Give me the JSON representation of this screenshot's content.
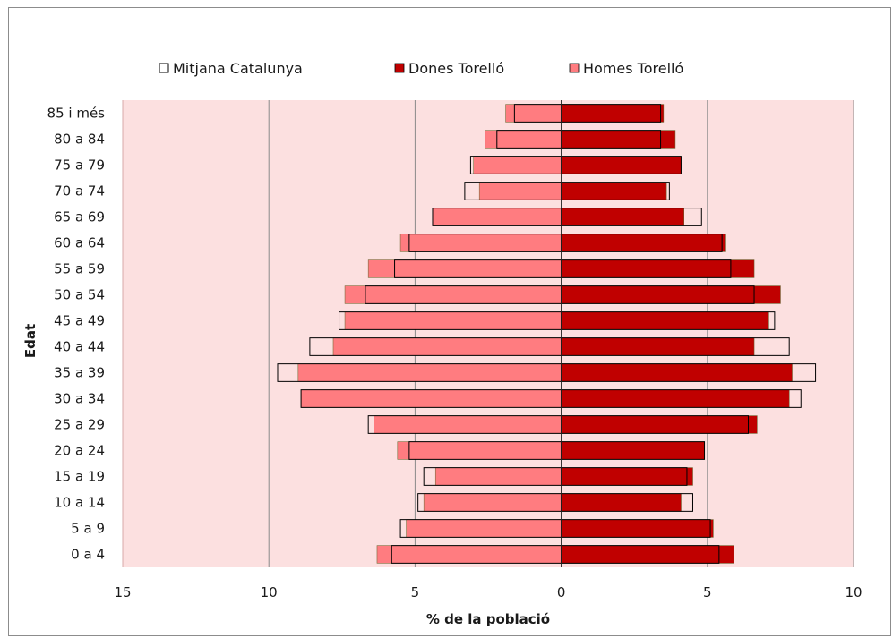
{
  "chart_data": {
    "type": "bar",
    "orientation": "horizontal",
    "xlabel": "% de la població",
    "ylabel": "Edat",
    "xlim": [
      -15,
      10
    ],
    "x_ticks": [
      "15",
      "10",
      "5",
      "0",
      "5",
      "10"
    ],
    "legend_position": "top",
    "legend": [
      {
        "name": "Mitjana Catalunya",
        "style": "outline"
      },
      {
        "name": "Dones Torelló",
        "color": "#c00000"
      },
      {
        "name": "Homes Torelló",
        "color": "#ff7c80"
      }
    ],
    "categories": [
      "0 a 4",
      "5 a 9",
      "10 a 14",
      "15 a 19",
      "20 a 24",
      "25 a 29",
      "30 a 34",
      "35 a 39",
      "40 a 44",
      "45 a 49",
      "50 a 54",
      "55 a 59",
      "60 a 64",
      "65 a 69",
      "70 a 74",
      "75 a 79",
      "80 a 84",
      "85 i més"
    ],
    "series": [
      {
        "name": "Homes Torelló",
        "side": "left",
        "values": [
          6.3,
          5.3,
          4.7,
          4.3,
          5.6,
          6.4,
          8.9,
          9.0,
          7.8,
          7.4,
          7.4,
          6.6,
          5.5,
          4.4,
          2.8,
          3.0,
          2.6,
          1.9
        ]
      },
      {
        "name": "Dones Torelló",
        "side": "right",
        "values": [
          5.9,
          5.2,
          4.1,
          4.5,
          4.9,
          6.7,
          7.8,
          7.9,
          6.6,
          7.1,
          7.5,
          6.6,
          5.6,
          4.2,
          3.6,
          4.1,
          3.9,
          3.5
        ]
      },
      {
        "name": "Mitjana Catalunya",
        "side": "both",
        "male": [
          5.8,
          5.5,
          4.9,
          4.7,
          5.2,
          6.6,
          8.9,
          9.7,
          8.6,
          7.6,
          6.7,
          5.7,
          5.2,
          4.4,
          3.3,
          3.1,
          2.2,
          1.6
        ],
        "female": [
          5.4,
          5.1,
          4.5,
          4.3,
          4.9,
          6.4,
          8.2,
          8.7,
          7.8,
          7.3,
          6.6,
          5.8,
          5.5,
          4.8,
          3.7,
          4.1,
          3.4,
          3.4
        ]
      }
    ]
  }
}
